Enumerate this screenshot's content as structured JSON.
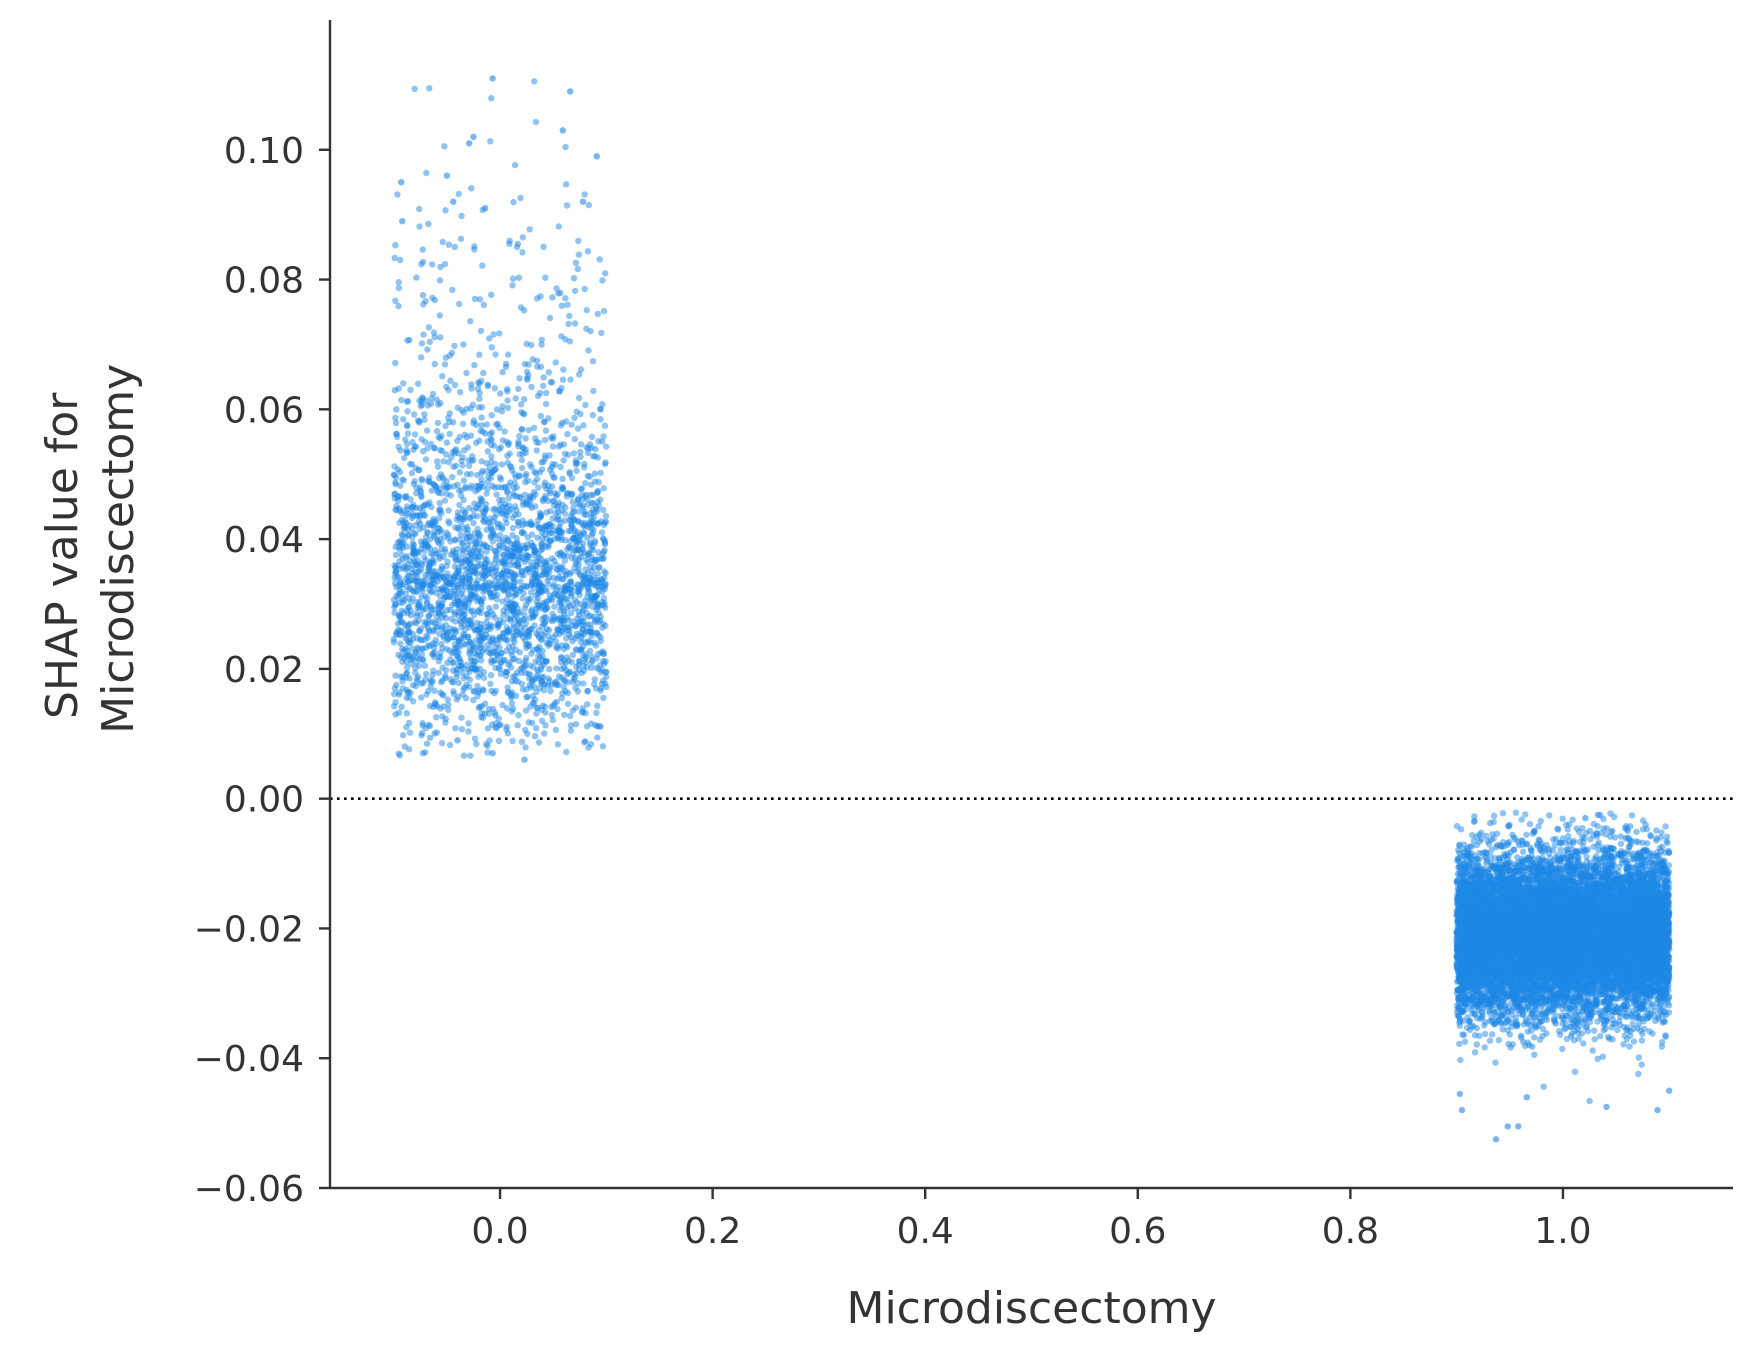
{
  "chart_data": {
    "type": "scatter",
    "xlabel": "Microdiscectomy",
    "ylabel_lines": [
      "SHAP value for",
      "Microdiscectomy"
    ],
    "xlim": [
      -0.16,
      1.16
    ],
    "ylim": [
      -0.06,
      0.12
    ],
    "xticks": [
      0.0,
      0.2,
      0.4,
      0.6,
      0.8,
      1.0
    ],
    "xtick_labels": [
      "0.0",
      "0.2",
      "0.4",
      "0.6",
      "0.8",
      "1.0"
    ],
    "yticks": [
      -0.06,
      -0.04,
      -0.02,
      0.0,
      0.02,
      0.04,
      0.06,
      0.08,
      0.1
    ],
    "ytick_labels": [
      "−0.06",
      "−0.04",
      "−0.02",
      "0.00",
      "0.02",
      "0.04",
      "0.06",
      "0.08",
      "0.10"
    ],
    "reference_line": {
      "y": 0.0,
      "style": "dotted",
      "color": "#000000"
    },
    "point_color": "#1e88e5",
    "axis_color": "#333333",
    "grid": false,
    "jitter_width": 0.1,
    "clusters": [
      {
        "x": 0.0,
        "count": 3000,
        "y_center": 0.031,
        "y_spread": 0.0115,
        "y_range": [
          0.006,
          0.111
        ],
        "notable_points": [
          {
            "x": -0.007,
            "y": 0.111
          },
          {
            "x": 0.066,
            "y": 0.109
          },
          {
            "x": -0.025,
            "y": 0.102
          },
          {
            "x": 0.059,
            "y": 0.103
          },
          {
            "x": -0.029,
            "y": 0.101
          },
          {
            "x": 0.091,
            "y": 0.099
          },
          {
            "x": -0.05,
            "y": 0.096
          },
          {
            "x": -0.093,
            "y": 0.095
          },
          {
            "x": -0.044,
            "y": 0.092
          },
          {
            "x": 0.078,
            "y": 0.092
          },
          {
            "x": -0.014,
            "y": 0.091
          },
          {
            "x": -0.092,
            "y": 0.089
          },
          {
            "x": -0.007,
            "y": 0.007
          },
          {
            "x": 0.023,
            "y": 0.006
          },
          {
            "x": -0.04,
            "y": 0.009
          }
        ]
      },
      {
        "x": 1.0,
        "count": 12000,
        "y_center": -0.021,
        "y_spread": 0.006,
        "y_range": [
          -0.053,
          -0.002
        ],
        "notable_points": [
          {
            "x": 1.033,
            "y": -0.0025
          },
          {
            "x": 1.021,
            "y": -0.003
          },
          {
            "x": 0.937,
            "y": -0.0525
          },
          {
            "x": 0.948,
            "y": -0.0505
          },
          {
            "x": 0.958,
            "y": -0.0505
          },
          {
            "x": 1.089,
            "y": -0.048
          },
          {
            "x": 0.905,
            "y": -0.048
          },
          {
            "x": 1.041,
            "y": -0.0475
          },
          {
            "x": 0.966,
            "y": -0.046
          },
          {
            "x": 0.903,
            "y": -0.0455
          },
          {
            "x": 1.1,
            "y": -0.045
          }
        ]
      }
    ]
  }
}
